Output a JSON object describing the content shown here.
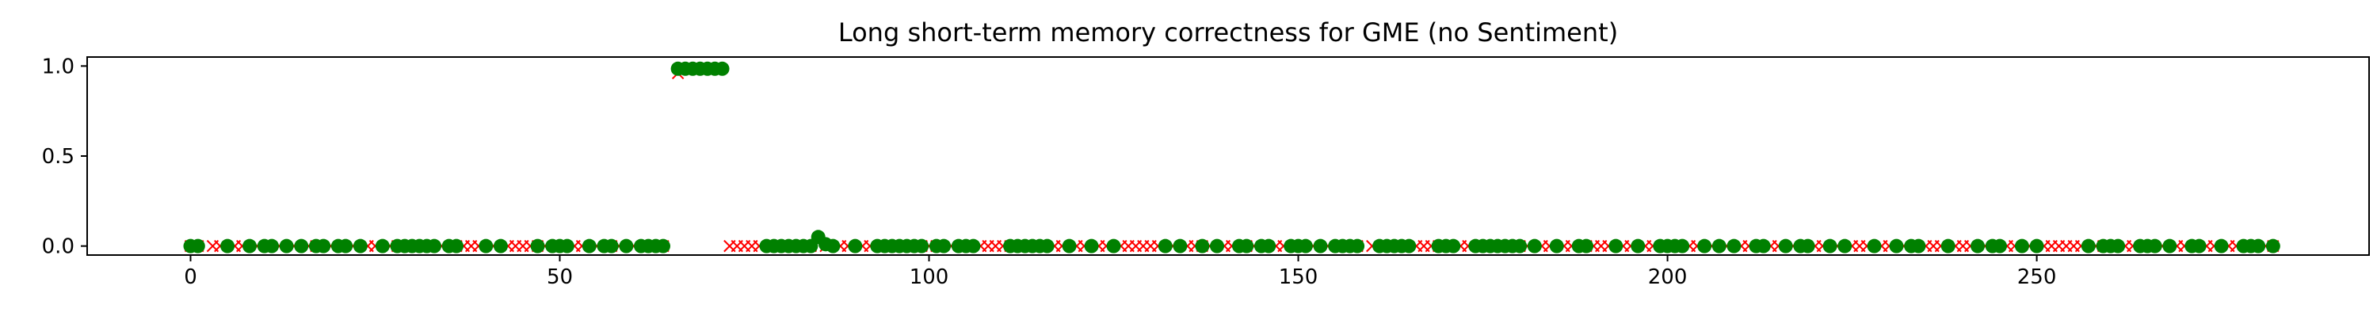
{
  "chart_data": {
    "type": "scatter",
    "title": "Long short-term memory correctness for GME (no Sentiment)",
    "xlabel": "",
    "ylabel": "",
    "xlim": [
      -14,
      295
    ],
    "ylim": [
      -0.05,
      1.05
    ],
    "xticks": [
      0,
      50,
      100,
      150,
      200,
      250
    ],
    "xtick_labels": [
      "0",
      "50",
      "100",
      "150",
      "200",
      "250"
    ],
    "yticks": [
      0.0,
      0.5,
      1.0
    ],
    "ytick_labels": [
      "0.0",
      "0.5",
      "1.0"
    ],
    "grid": false,
    "legend": "none",
    "incorrect": {
      "marker": "x",
      "color": "#ff0000",
      "x": [
        0,
        1,
        3,
        4,
        6,
        7,
        9,
        12,
        14,
        16,
        17,
        19,
        22,
        24,
        25,
        27,
        28,
        30,
        34,
        36,
        37,
        38,
        39,
        41,
        43,
        44,
        45,
        46,
        47,
        48,
        50,
        52,
        53,
        55,
        57,
        58,
        60,
        63,
        64,
        66,
        73,
        74,
        75,
        76,
        77,
        82,
        84,
        86,
        88,
        89,
        91,
        92,
        94,
        96,
        97,
        99,
        100,
        101,
        103,
        107,
        108,
        109,
        110,
        111,
        113,
        114,
        117,
        118,
        120,
        121,
        123,
        124,
        126,
        127,
        128,
        129,
        130,
        131,
        133,
        135,
        136,
        137,
        138,
        140,
        141,
        143,
        144,
        147,
        148,
        150,
        152,
        154,
        157,
        158,
        160,
        162,
        163,
        166,
        167,
        168,
        169,
        172,
        173,
        175,
        176,
        180,
        181,
        183,
        184,
        186,
        187,
        189,
        190,
        191,
        192,
        194,
        195,
        197,
        198,
        201,
        203,
        204,
        206,
        208,
        210,
        211,
        214,
        215,
        217,
        220,
        221,
        223,
        225,
        226,
        227,
        229,
        230,
        232,
        235,
        236,
        237,
        239,
        240,
        241,
        243,
        246,
        247,
        249,
        251,
        252,
        253,
        254,
        255,
        256,
        258,
        259,
        262,
        263,
        265,
        267,
        269,
        270,
        273,
        274,
        276,
        277,
        279,
        281,
        282
      ],
      "y": [
        0,
        0,
        0,
        0,
        0,
        0,
        0,
        0,
        0,
        0,
        0,
        0,
        0,
        0,
        0,
        0,
        0,
        0,
        0,
        0,
        0,
        0,
        0,
        0,
        0,
        0,
        0,
        0,
        0,
        0,
        0,
        0,
        0,
        0,
        0,
        0,
        0,
        0,
        0,
        0.96,
        0,
        0,
        0,
        0,
        0,
        0,
        0,
        0,
        0,
        0,
        0,
        0,
        0,
        0,
        0,
        0,
        0,
        0,
        0,
        0,
        0,
        0,
        0,
        0,
        0,
        0,
        0,
        0,
        0,
        0,
        0,
        0,
        0,
        0,
        0,
        0,
        0,
        0,
        0,
        0,
        0,
        0,
        0,
        0,
        0,
        0,
        0,
        0,
        0,
        0,
        0,
        0,
        0,
        0,
        0,
        0,
        0,
        0,
        0,
        0,
        0,
        0,
        0,
        0,
        0,
        0,
        0,
        0,
        0,
        0,
        0,
        0,
        0,
        0,
        0,
        0,
        0,
        0,
        0,
        0,
        0,
        0,
        0,
        0,
        0,
        0,
        0,
        0,
        0,
        0,
        0,
        0,
        0,
        0,
        0,
        0,
        0,
        0,
        0,
        0,
        0,
        0,
        0,
        0,
        0,
        0,
        0,
        0,
        0,
        0,
        0,
        0,
        0,
        0,
        0,
        0,
        0,
        0,
        0,
        0,
        0,
        0,
        0,
        0,
        0,
        0,
        0,
        0,
        0
      ]
    },
    "correct": {
      "marker": "o",
      "color": "#008000",
      "x": [
        0,
        1,
        5,
        8,
        10,
        11,
        13,
        15,
        17,
        18,
        20,
        21,
        23,
        26,
        28,
        29,
        30,
        31,
        32,
        33,
        35,
        36,
        40,
        42,
        47,
        49,
        50,
        51,
        54,
        56,
        57,
        59,
        61,
        62,
        63,
        64,
        66,
        67,
        68,
        69,
        70,
        71,
        72,
        78,
        79,
        80,
        81,
        82,
        83,
        84,
        85,
        86,
        87,
        90,
        93,
        94,
        95,
        96,
        97,
        98,
        99,
        101,
        102,
        104,
        105,
        106,
        111,
        112,
        113,
        114,
        115,
        116,
        119,
        122,
        125,
        132,
        134,
        137,
        139,
        142,
        143,
        145,
        146,
        149,
        150,
        151,
        153,
        155,
        156,
        157,
        158,
        161,
        162,
        163,
        164,
        165,
        169,
        170,
        171,
        174,
        175,
        176,
        177,
        178,
        179,
        180,
        182,
        185,
        188,
        189,
        193,
        196,
        199,
        200,
        201,
        202,
        205,
        207,
        209,
        212,
        213,
        216,
        218,
        219,
        222,
        224,
        228,
        231,
        233,
        234,
        238,
        242,
        244,
        245,
        248,
        250,
        257,
        259,
        260,
        261,
        264,
        265,
        266,
        268,
        271,
        272,
        275,
        278,
        279,
        280,
        282
      ],
      "y": [
        0,
        0,
        0,
        0,
        0,
        0,
        0,
        0,
        0,
        0,
        0,
        0,
        0,
        0,
        0,
        0,
        0,
        0,
        0,
        0,
        0,
        0,
        0,
        0,
        0,
        0,
        0,
        0,
        0,
        0,
        0,
        0,
        0,
        0,
        0,
        0,
        0.985,
        0.985,
        0.985,
        0.985,
        0.985,
        0.985,
        0.985,
        0,
        0,
        0,
        0,
        0,
        0,
        0,
        0.05,
        0.01,
        0,
        0,
        0,
        0,
        0,
        0,
        0,
        0,
        0,
        0,
        0,
        0,
        0,
        0,
        0,
        0,
        0,
        0,
        0,
        0,
        0,
        0,
        0,
        0,
        0,
        0,
        0,
        0,
        0,
        0,
        0,
        0,
        0,
        0,
        0,
        0,
        0,
        0,
        0,
        0,
        0,
        0,
        0,
        0,
        0,
        0,
        0,
        0,
        0,
        0,
        0,
        0,
        0,
        0,
        0,
        0,
        0,
        0,
        0,
        0,
        0,
        0,
        0,
        0,
        0,
        0,
        0,
        0,
        0,
        0,
        0,
        0,
        0,
        0,
        0,
        0,
        0,
        0,
        0,
        0,
        0,
        0,
        0,
        0,
        0,
        0,
        0,
        0,
        0,
        0,
        0,
        0,
        0,
        0,
        0,
        0,
        0,
        0,
        0
      ]
    }
  }
}
